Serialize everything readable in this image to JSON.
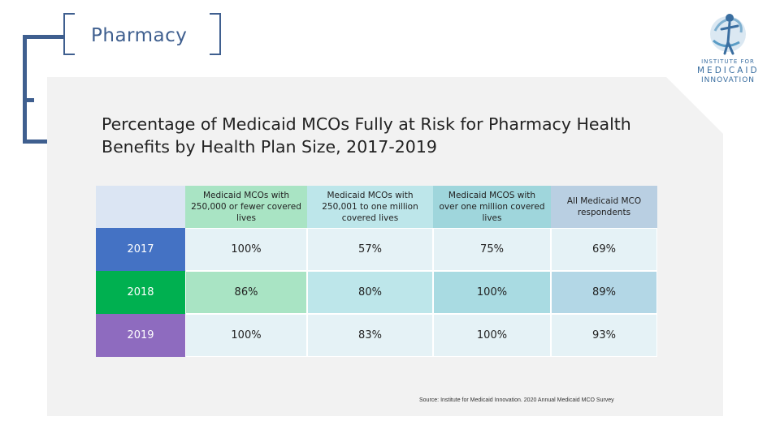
{
  "slide": {
    "section_title": "Pharmacy",
    "heading_line1": "Percentage of Medicaid MCOs Fully at Risk for Pharmacy Health",
    "heading_line2": "Benefits by Health Plan Size, 2017-2019",
    "source": "Source: Institute for Medicaid Innovation. 2020 Annual Medicaid MCO Survey"
  },
  "logo": {
    "line1": "INSTITUTE FOR",
    "line2": "MEDICAID",
    "line3": "INNOVATION"
  },
  "colors": {
    "frame": "#3f5f8f",
    "year_2017": "#4472c4",
    "year_2018": "#00b050",
    "year_2019": "#8e6bbf"
  },
  "table": {
    "headers": [
      "Medicaid MCOs with 250,000 or fewer covered lives",
      "Medicaid MCOs with 250,001 to one million covered lives",
      "Medicaid MCOS with over one million covered lives",
      "All Medicaid MCO respondents"
    ],
    "rows": [
      {
        "year": "2017",
        "values": [
          "100%",
          "57%",
          "75%",
          "69%"
        ]
      },
      {
        "year": "2018",
        "values": [
          "86%",
          "80%",
          "100%",
          "89%"
        ]
      },
      {
        "year": "2019",
        "values": [
          "100%",
          "83%",
          "100%",
          "93%"
        ]
      }
    ]
  }
}
